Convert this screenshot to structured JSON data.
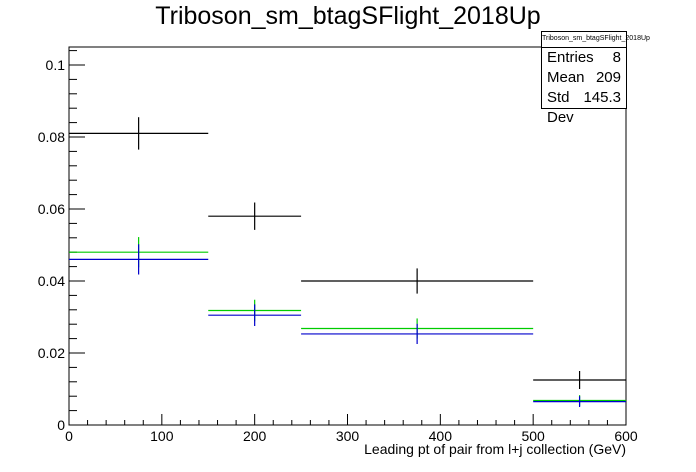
{
  "title": "Triboson_sm_btagSFlight_2018Up",
  "stats": {
    "title": "Triboson_sm_btagSFlight_2018Up",
    "entries_label": "Entries",
    "entries": "8",
    "mean_label": "Mean",
    "mean": "209",
    "std_label": "Std Dev",
    "std": "145.3"
  },
  "chart_data": {
    "type": "line",
    "title": "Triboson_sm_btagSFlight_2018Up",
    "xlabel": "Leading pt of pair from l+j collection (GeV)",
    "ylabel": "",
    "xlim": [
      0,
      600
    ],
    "ylim": [
      0,
      0.105
    ],
    "xticks": [
      0,
      100,
      200,
      300,
      400,
      500,
      600
    ],
    "yticks": [
      0,
      0.02,
      0.04,
      0.06,
      0.08,
      0.1
    ],
    "ytick_labels": [
      "0",
      "0.02",
      "0.04",
      "0.06",
      "0.08",
      "0.1"
    ],
    "bin_edges": [
      0,
      150,
      250,
      500,
      600
    ],
    "grid": false,
    "series": [
      {
        "color": "#000000",
        "values": [
          0.081,
          0.058,
          0.04,
          0.0125
        ],
        "errors": [
          0.0045,
          0.0038,
          0.0035,
          0.0025
        ]
      },
      {
        "color": "#00cc00",
        "values": [
          0.048,
          0.0318,
          0.0268,
          0.0068
        ],
        "errors": [
          0.0042,
          0.003,
          0.0028,
          0.0015
        ]
      },
      {
        "color": "#0000cc",
        "values": [
          0.046,
          0.0305,
          0.0253,
          0.0065
        ],
        "errors": [
          0.0042,
          0.003,
          0.0028,
          0.0015
        ]
      }
    ]
  }
}
